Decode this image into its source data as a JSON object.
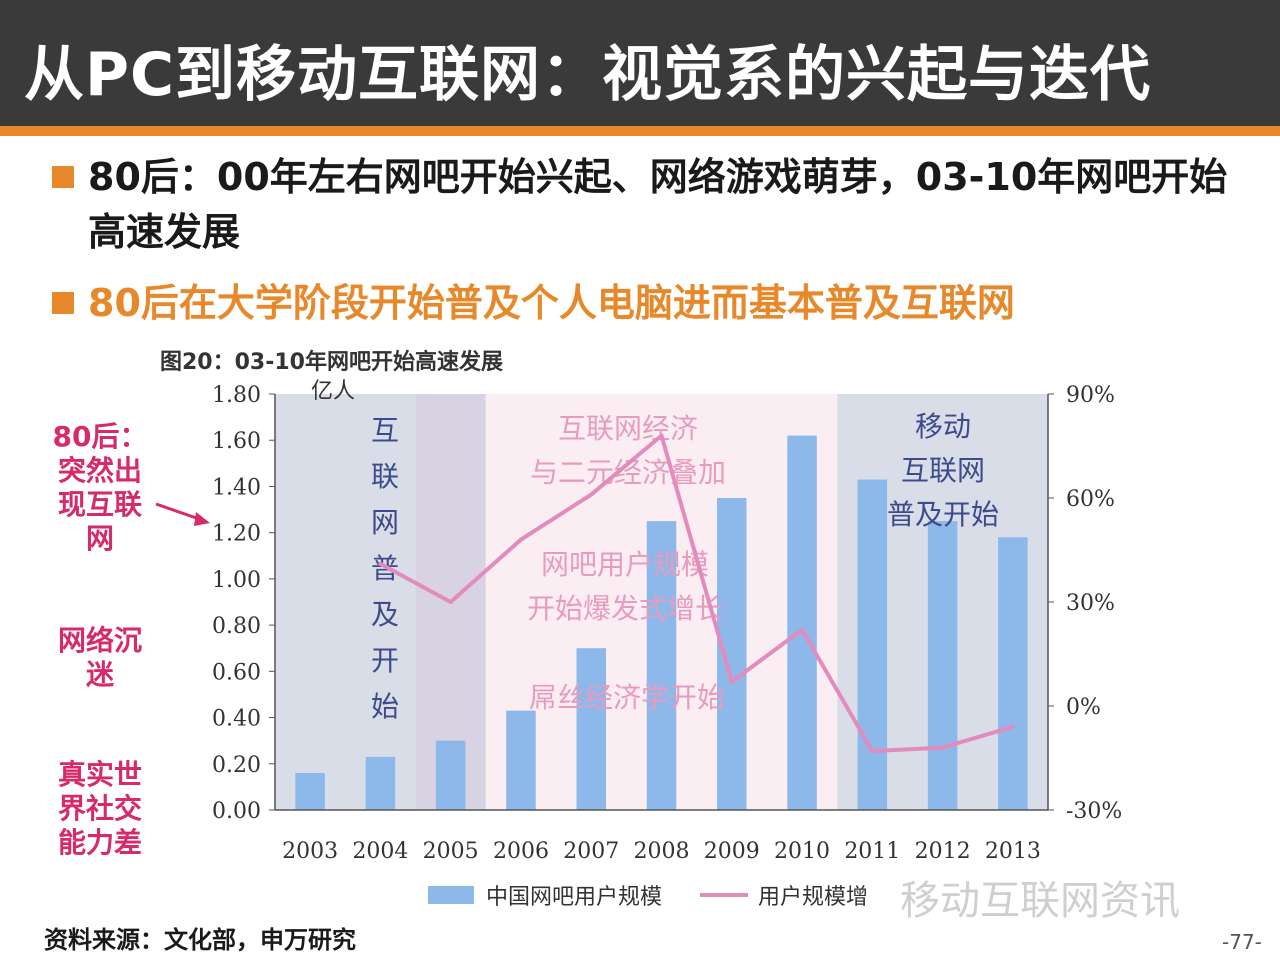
{
  "title": "从PC到移动互联网：视觉系的兴起与迭代",
  "bullets": [
    "80后：00年左右网吧开始兴起、网络游戏萌芽，03-10年网吧开始高速发展",
    "80后在大学阶段开始普及个人电脑进而基本普及互联网"
  ],
  "side_notes": {
    "note1": [
      "80后：",
      "突然出",
      "现互联",
      "网"
    ],
    "note2": [
      "网络沉",
      "迷"
    ],
    "note3": [
      "真实世",
      "界社交",
      "能力差"
    ]
  },
  "source": "资料来源：文化部，申万研究",
  "page_number": "-77-",
  "watermark": "移动互联网资讯",
  "colors": {
    "accent": "#e7892b",
    "title_bg": "#3a3a3a",
    "note": "#d62a6b",
    "bar": "#8cb8ea",
    "line": "#e38bbd",
    "band_gray": "#d9dde8",
    "band_pink": "#fbeef3"
  },
  "chart_data": {
    "type": "bar+line",
    "title": "图20：03-10年网吧开始高速发展",
    "ylabel_left": "亿人",
    "categories": [
      "2003",
      "2004",
      "2005",
      "2006",
      "2007",
      "2008",
      "2009",
      "2010",
      "2011",
      "2012",
      "2013"
    ],
    "y_left_ticks": [
      "1.80",
      "1.60",
      "1.40",
      "1.20",
      "1.00",
      "0.80",
      "0.60",
      "0.40",
      "0.20",
      "0.00"
    ],
    "y_right_ticks": [
      "90%",
      "60%",
      "30%",
      "0%",
      "-30%"
    ],
    "ylim_left": [
      0,
      1.8
    ],
    "ylim_right": [
      -30,
      90
    ],
    "series": [
      {
        "name": "中国网吧用户规模",
        "type": "bar",
        "values": [
          0.16,
          0.23,
          0.3,
          0.43,
          0.7,
          1.25,
          1.35,
          1.62,
          1.43,
          1.25,
          1.18
        ]
      },
      {
        "name": "用户规模增",
        "type": "line",
        "unit": "%",
        "values": [
          null,
          41,
          30,
          48,
          61,
          78,
          7,
          22,
          -13,
          -12,
          -6
        ]
      }
    ],
    "annotations": [
      {
        "lines": [
          "互",
          "联",
          "网",
          "普",
          "及",
          "开",
          "始"
        ]
      },
      {
        "lines": [
          "互联网经济",
          "与二元经济叠加"
        ]
      },
      {
        "lines": [
          "网吧用户规模",
          "开始爆发式增长"
        ]
      },
      {
        "lines": [
          "屌丝经济学开始"
        ]
      },
      {
        "lines": [
          "移动",
          "互联网",
          "普及开始"
        ]
      }
    ]
  }
}
